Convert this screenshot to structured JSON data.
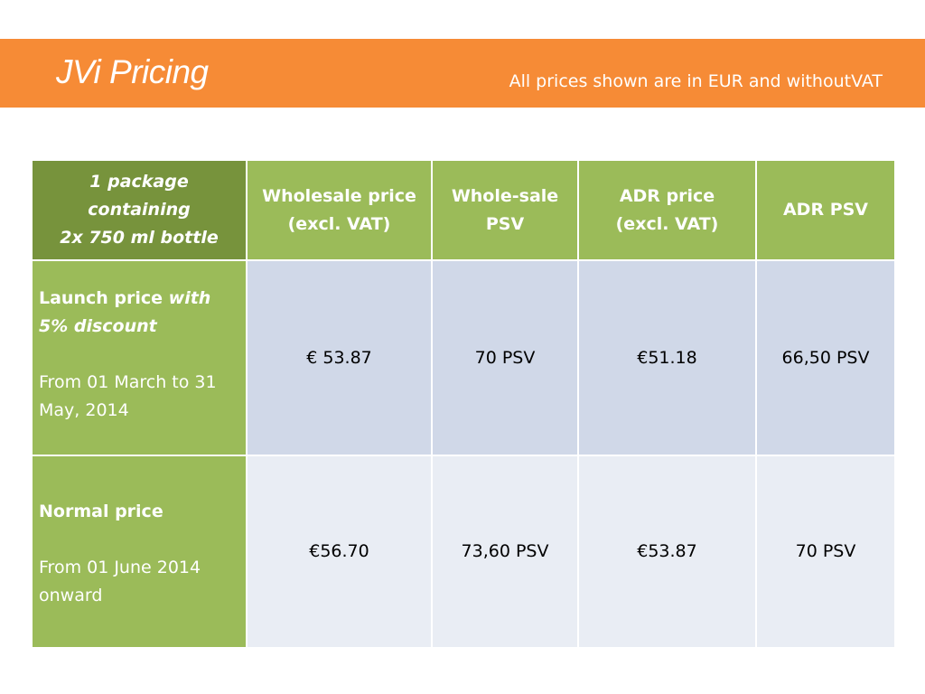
{
  "slide": {
    "title": "JVi Pricing",
    "subtitle": "All prices shown are in EUR and withoutVAT"
  },
  "colors": {
    "header_band": "#f68b36",
    "table_header_dark_green": "#77933c",
    "table_header_green": "#9bbb59",
    "row_label_green": "#9bbb59",
    "cell_light_blue_1": "#d0d8e8",
    "cell_light_blue_2": "#e9edf4"
  },
  "table": {
    "corner_header": [
      "1 package",
      "containing",
      "2x 750 ml bottle"
    ],
    "columns": [
      [
        "Wholesale price",
        "(excl. VAT)"
      ],
      [
        "Whole-sale",
        "PSV"
      ],
      [
        "ADR price",
        "(excl. VAT)"
      ],
      [
        "ADR PSV"
      ]
    ],
    "rows": [
      {
        "label_bold": "Launch price ",
        "label_italic": "with 5% discount",
        "period": "From 01 March to 31 May, 2014",
        "values": [
          "€ 53.87",
          "70 PSV",
          "€51.18",
          "66,50 PSV"
        ]
      },
      {
        "label_bold": "Normal price",
        "label_italic": "",
        "period": "From 01 June 2014 onward",
        "values": [
          "€56.70",
          "73,60 PSV",
          "€53.87",
          "70 PSV"
        ]
      }
    ]
  }
}
